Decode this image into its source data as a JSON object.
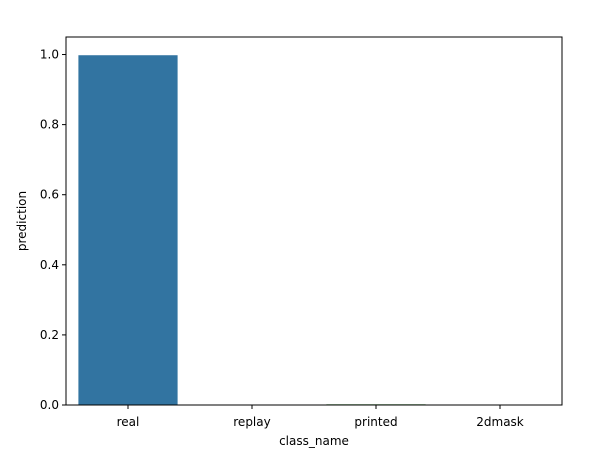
{
  "chart_data": {
    "type": "bar",
    "title": "",
    "xlabel": "class_name",
    "ylabel": "prediction",
    "categories": [
      "real",
      "replay",
      "printed",
      "2dmask"
    ],
    "values": [
      0.998,
      0.0,
      0.002,
      0.0
    ],
    "bar_colors": [
      "#3274a1",
      "#e1812c",
      "#3a923a",
      "#c03d3e"
    ],
    "ylim": [
      0,
      1.05
    ],
    "yticks": [
      0.0,
      0.2,
      0.4,
      0.6,
      0.8,
      1.0
    ],
    "ytick_labels": [
      "0.0",
      "0.2",
      "0.4",
      "0.6",
      "0.8",
      "1.0"
    ],
    "grid": false,
    "legend": "none"
  }
}
